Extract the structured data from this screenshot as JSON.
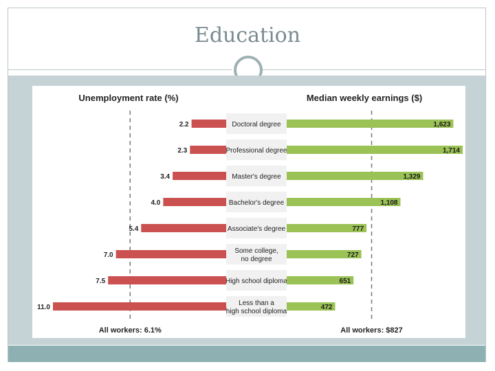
{
  "slide": {
    "title": "Education"
  },
  "colors": {
    "unemployment_bar": "#cb5050",
    "earnings_bar": "#9bc255",
    "label_box": "#f1f1f1",
    "reference_line": "#777777",
    "frame": "#b9c6c9",
    "content_band": "#c5d2d6",
    "footer_band": "#8eb0b2"
  },
  "chart_data": {
    "type": "bar",
    "categories": [
      "Doctoral degree",
      "Professional degree",
      "Master's degree",
      "Bachelor's degree",
      "Associate's degree",
      "Some college, no degree",
      "High school diploma",
      "Less than a high school diploma"
    ],
    "category_lines": [
      [
        "Doctoral degree"
      ],
      [
        "Professional degree"
      ],
      [
        "Master's degree"
      ],
      [
        "Bachelor's degree"
      ],
      [
        "Associate's degree"
      ],
      [
        "Some college,",
        "no degree"
      ],
      [
        "High school diploma"
      ],
      [
        "Less than a",
        "high school diploma"
      ]
    ],
    "series": [
      {
        "name": "Unemployment rate (%)",
        "values": [
          2.2,
          2.3,
          3.4,
          4.0,
          5.4,
          7.0,
          7.5,
          11.0
        ],
        "labels": [
          "2.2",
          "2.3",
          "3.4",
          "4.0",
          "5.4",
          "7.0",
          "7.5",
          "11.0"
        ],
        "reference_value": 6.1,
        "reference_label": "All workers: 6.1%",
        "max": 11.0,
        "direction": "left"
      },
      {
        "name": "Median weekly earnings ($)",
        "values": [
          1623,
          1714,
          1329,
          1108,
          777,
          727,
          651,
          472
        ],
        "labels": [
          "1,623",
          "1,714",
          "1,329",
          "1,108",
          "777",
          "727",
          "651",
          "472"
        ],
        "reference_value": 827,
        "reference_label": "All workers: $827",
        "max": 1714,
        "direction": "right"
      }
    ]
  }
}
